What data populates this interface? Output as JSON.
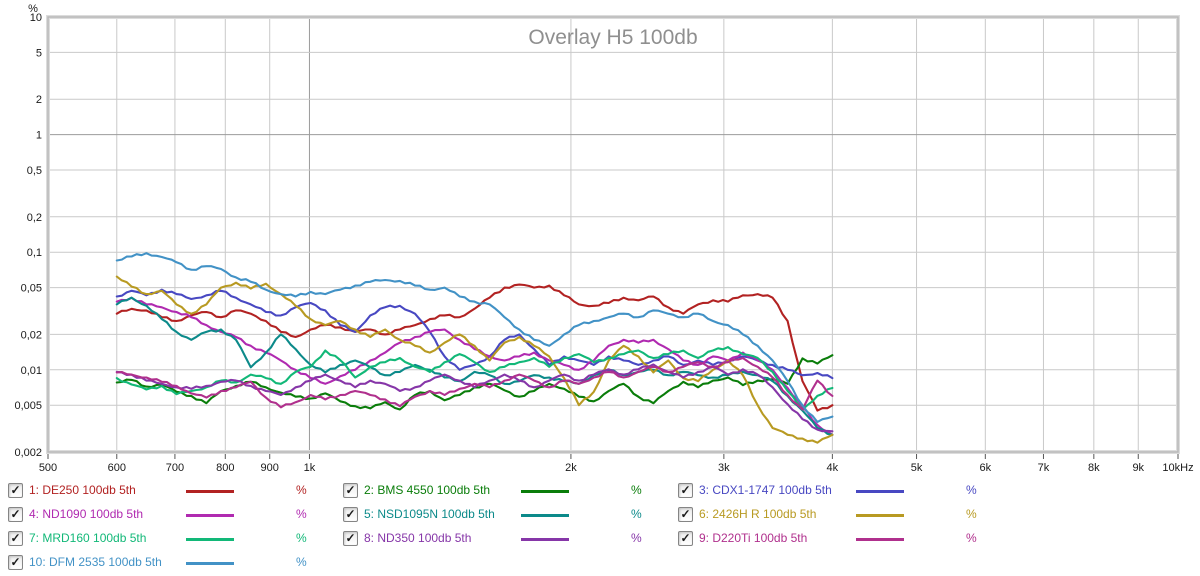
{
  "title": "Overlay H5 100db",
  "axis": {
    "y_unit": "%",
    "x_tick_labels": [
      "500",
      "600",
      "700",
      "800",
      "900",
      "1k",
      "2k",
      "3k",
      "4k",
      "5k",
      "6k",
      "7k",
      "8k",
      "9k",
      "10kHz"
    ],
    "y_tick_labels": [
      "10",
      "5",
      "2",
      "1",
      "0,5",
      "0,2",
      "0,1",
      "0,05",
      "0,02",
      "0,01",
      "0,005",
      "0,002"
    ]
  },
  "colors": {
    "grid": "#c9c9c9",
    "grid_major": "#9b9b9b",
    "border": "#b9b9b9",
    "border_outer": "#dcdcdc",
    "title": "#8f8f8f",
    "tick_text": "#1a1a1a",
    "tick_mark": "#555555",
    "background": "#ffffff"
  },
  "chart_data": {
    "type": "line",
    "title": "Overlay H5 100db",
    "ylabel": "%",
    "x_unit": "Hz",
    "x_scale": "log",
    "y_scale": "log",
    "x_range": [
      500,
      10000
    ],
    "y_range": [
      0.002,
      10
    ],
    "grid": true,
    "legend_position": "bottom",
    "x_ticks": [
      {
        "f": 500,
        "label": "500"
      },
      {
        "f": 600,
        "label": "600"
      },
      {
        "f": 700,
        "label": "700"
      },
      {
        "f": 800,
        "label": "800"
      },
      {
        "f": 900,
        "label": "900"
      },
      {
        "f": 1000,
        "label": "1k"
      },
      {
        "f": 2000,
        "label": "2k"
      },
      {
        "f": 3000,
        "label": "3k"
      },
      {
        "f": 4000,
        "label": "4k"
      },
      {
        "f": 5000,
        "label": "5k"
      },
      {
        "f": 6000,
        "label": "6k"
      },
      {
        "f": 7000,
        "label": "7k"
      },
      {
        "f": 8000,
        "label": "8k"
      },
      {
        "f": 9000,
        "label": "9k"
      },
      {
        "f": 10000,
        "label": "10kHz"
      }
    ],
    "y_ticks": [
      {
        "v": 10,
        "label": "10"
      },
      {
        "v": 5,
        "label": "5"
      },
      {
        "v": 2,
        "label": "2"
      },
      {
        "v": 1,
        "label": "1"
      },
      {
        "v": 0.5,
        "label": "0,5"
      },
      {
        "v": 0.2,
        "label": "0,2"
      },
      {
        "v": 0.1,
        "label": "0,1"
      },
      {
        "v": 0.05,
        "label": "0,05"
      },
      {
        "v": 0.02,
        "label": "0,02"
      },
      {
        "v": 0.01,
        "label": "0,01"
      },
      {
        "v": 0.005,
        "label": "0,005"
      },
      {
        "v": 0.002,
        "label": "0,002"
      }
    ],
    "frequencies_hz": [
      600,
      624,
      649,
      676,
      703,
      731,
      761,
      791,
      823,
      856,
      891,
      927,
      964,
      1003,
      1043,
      1085,
      1129,
      1175,
      1222,
      1271,
      1323,
      1376,
      1431,
      1489,
      1549,
      1612,
      1677,
      1744,
      1814,
      1888,
      1964,
      2043,
      2125,
      2211,
      2300,
      2392,
      2489,
      2589,
      2694,
      2802,
      2915,
      3033,
      3155,
      3282,
      3414,
      3552,
      3695,
      3844,
      4000
    ],
    "series": [
      {
        "name": "1: DE250 100db 5th",
        "color": "#b22222",
        "values": [
          0.03,
          0.033,
          0.032,
          0.028,
          0.026,
          0.029,
          0.031,
          0.028,
          0.032,
          0.03,
          0.026,
          0.021,
          0.019,
          0.022,
          0.024,
          0.023,
          0.021,
          0.022,
          0.02,
          0.022,
          0.024,
          0.027,
          0.029,
          0.028,
          0.033,
          0.041,
          0.05,
          0.053,
          0.05,
          0.052,
          0.043,
          0.036,
          0.035,
          0.037,
          0.041,
          0.039,
          0.042,
          0.034,
          0.03,
          0.036,
          0.039,
          0.038,
          0.043,
          0.044,
          0.041,
          0.026,
          0.008,
          0.0045,
          0.005
        ]
      },
      {
        "name": "2: BMS 4550 100db 5th",
        "color": "#0a7d0a",
        "values": [
          0.0078,
          0.0082,
          0.0072,
          0.0075,
          0.0065,
          0.006,
          0.0052,
          0.0066,
          0.0073,
          0.0079,
          0.0071,
          0.0064,
          0.0059,
          0.0057,
          0.0063,
          0.0054,
          0.0049,
          0.0047,
          0.0053,
          0.0046,
          0.0061,
          0.0066,
          0.0055,
          0.0061,
          0.0071,
          0.0076,
          0.0067,
          0.0059,
          0.0066,
          0.0076,
          0.0069,
          0.0059,
          0.0054,
          0.0066,
          0.0076,
          0.0059,
          0.0052,
          0.0066,
          0.0079,
          0.0071,
          0.0081,
          0.0086,
          0.0074,
          0.0081,
          0.0083,
          0.0076,
          0.0125,
          0.0113,
          0.0133
        ]
      },
      {
        "name": "3: CDX1-1747 100db 5th",
        "color": "#4848c2",
        "values": [
          0.042,
          0.047,
          0.043,
          0.048,
          0.044,
          0.04,
          0.043,
          0.047,
          0.041,
          0.036,
          0.031,
          0.029,
          0.034,
          0.037,
          0.032,
          0.024,
          0.021,
          0.029,
          0.034,
          0.035,
          0.03,
          0.021,
          0.013,
          0.01,
          0.011,
          0.013,
          0.018,
          0.02,
          0.015,
          0.011,
          0.013,
          0.012,
          0.011,
          0.013,
          0.012,
          0.011,
          0.012,
          0.013,
          0.011,
          0.012,
          0.011,
          0.012,
          0.013,
          0.012,
          0.011,
          0.01,
          0.009,
          0.0094,
          0.0085
        ]
      },
      {
        "name": "4: ND1090 100db 5th",
        "color": "#b02ab0",
        "values": [
          0.038,
          0.041,
          0.036,
          0.034,
          0.031,
          0.028,
          0.024,
          0.021,
          0.019,
          0.016,
          0.014,
          0.012,
          0.01,
          0.0085,
          0.0076,
          0.0088,
          0.01,
          0.012,
          0.014,
          0.017,
          0.019,
          0.021,
          0.022,
          0.018,
          0.015,
          0.013,
          0.012,
          0.013,
          0.014,
          0.012,
          0.011,
          0.01,
          0.012,
          0.016,
          0.018,
          0.017,
          0.018,
          0.015,
          0.012,
          0.011,
          0.013,
          0.012,
          0.014,
          0.012,
          0.01,
          0.007,
          0.0048,
          0.0034,
          0.0028
        ]
      },
      {
        "name": "5: NSD1095N 100db 5th",
        "color": "#0c8a8a",
        "values": [
          0.036,
          0.041,
          0.035,
          0.027,
          0.021,
          0.018,
          0.021,
          0.022,
          0.018,
          0.0105,
          0.014,
          0.02,
          0.015,
          0.011,
          0.0095,
          0.011,
          0.012,
          0.0105,
          0.009,
          0.0096,
          0.011,
          0.01,
          0.0086,
          0.008,
          0.0096,
          0.009,
          0.0076,
          0.008,
          0.009,
          0.0086,
          0.008,
          0.0076,
          0.009,
          0.01,
          0.009,
          0.0096,
          0.01,
          0.009,
          0.0096,
          0.009,
          0.0086,
          0.009,
          0.0096,
          0.009,
          0.008,
          0.006,
          0.0045,
          0.0032,
          0.0028
        ]
      },
      {
        "name": "6: 2426H R 100db 5th",
        "color": "#b89a22",
        "values": [
          0.062,
          0.051,
          0.044,
          0.047,
          0.036,
          0.03,
          0.036,
          0.05,
          0.055,
          0.049,
          0.054,
          0.044,
          0.035,
          0.027,
          0.024,
          0.026,
          0.022,
          0.019,
          0.022,
          0.018,
          0.016,
          0.014,
          0.017,
          0.02,
          0.016,
          0.012,
          0.017,
          0.019,
          0.016,
          0.013,
          0.0085,
          0.005,
          0.0065,
          0.012,
          0.016,
          0.013,
          0.0095,
          0.012,
          0.0085,
          0.008,
          0.01,
          0.012,
          0.009,
          0.005,
          0.0032,
          0.0028,
          0.0026,
          0.0024,
          0.0028
        ]
      },
      {
        "name": "7: MRD160 100db 5th",
        "color": "#12b878",
        "values": [
          0.0085,
          0.0075,
          0.0068,
          0.0073,
          0.0062,
          0.0066,
          0.0071,
          0.0081,
          0.0078,
          0.0091,
          0.0085,
          0.0076,
          0.0096,
          0.0106,
          0.0146,
          0.0121,
          0.0086,
          0.0106,
          0.0116,
          0.0126,
          0.0106,
          0.0096,
          0.0116,
          0.0136,
          0.0116,
          0.0096,
          0.0106,
          0.0116,
          0.0126,
          0.0106,
          0.0126,
          0.0136,
          0.0116,
          0.0126,
          0.0136,
          0.0146,
          0.0126,
          0.0136,
          0.0146,
          0.0126,
          0.0146,
          0.0156,
          0.0136,
          0.0126,
          0.0096,
          0.0066,
          0.0046,
          0.006,
          0.007
        ]
      },
      {
        "name": "8: ND350 100db 5th",
        "color": "#8636a8",
        "values": [
          0.0096,
          0.0091,
          0.0081,
          0.0076,
          0.0071,
          0.0069,
          0.0073,
          0.0079,
          0.0081,
          0.0073,
          0.0066,
          0.0061,
          0.0071,
          0.0081,
          0.0091,
          0.0081,
          0.0071,
          0.0081,
          0.0076,
          0.0066,
          0.0071,
          0.0081,
          0.0091,
          0.0081,
          0.0071,
          0.0081,
          0.0091,
          0.0081,
          0.0071,
          0.0081,
          0.0091,
          0.0081,
          0.0091,
          0.0101,
          0.0091,
          0.0101,
          0.0111,
          0.0096,
          0.0086,
          0.0096,
          0.0106,
          0.0091,
          0.0101,
          0.0091,
          0.0071,
          0.0051,
          0.0038,
          0.0031,
          0.003
        ]
      },
      {
        "name": "9: D220Ti 100db 5th",
        "color": "#b0308d",
        "values": [
          0.0095,
          0.0091,
          0.0086,
          0.0079,
          0.0073,
          0.0063,
          0.0058,
          0.0066,
          0.0071,
          0.0079,
          0.0058,
          0.0048,
          0.0053,
          0.0061,
          0.0056,
          0.0061,
          0.0066,
          0.0061,
          0.0056,
          0.0049,
          0.0059,
          0.0066,
          0.0061,
          0.0069,
          0.0076,
          0.0071,
          0.0081,
          0.0091,
          0.0081,
          0.0071,
          0.0081,
          0.0076,
          0.0086,
          0.0096,
          0.0086,
          0.0096,
          0.0106,
          0.0096,
          0.0106,
          0.0116,
          0.0106,
          0.0116,
          0.0126,
          0.0106,
          0.0086,
          0.0061,
          0.0046,
          0.0081,
          0.006
        ]
      },
      {
        "name": "10: DFM 2535 100db 5th",
        "color": "#4292c6",
        "values": [
          0.085,
          0.092,
          0.098,
          0.091,
          0.082,
          0.071,
          0.076,
          0.072,
          0.061,
          0.056,
          0.048,
          0.044,
          0.042,
          0.046,
          0.044,
          0.048,
          0.052,
          0.056,
          0.058,
          0.057,
          0.052,
          0.048,
          0.05,
          0.042,
          0.038,
          0.036,
          0.028,
          0.022,
          0.018,
          0.016,
          0.02,
          0.024,
          0.026,
          0.028,
          0.03,
          0.028,
          0.032,
          0.03,
          0.028,
          0.03,
          0.026,
          0.024,
          0.02,
          0.016,
          0.012,
          0.008,
          0.005,
          0.0036,
          0.004
        ]
      }
    ]
  },
  "legend": {
    "unit_symbol": "%",
    "items": [
      {
        "label": "1: DE250 100db 5th",
        "color": "#b22222",
        "checked": true
      },
      {
        "label": "2: BMS 4550 100db 5th",
        "color": "#0a7d0a",
        "checked": true
      },
      {
        "label": "3: CDX1-1747 100db 5th",
        "color": "#4848c2",
        "checked": true
      },
      {
        "label": "4: ND1090 100db 5th",
        "color": "#b02ab0",
        "checked": true
      },
      {
        "label": "5: NSD1095N 100db 5th",
        "color": "#0c8a8a",
        "checked": true
      },
      {
        "label": "6: 2426H R 100db 5th",
        "color": "#b89a22",
        "checked": true
      },
      {
        "label": "7: MRD160 100db 5th",
        "color": "#12b878",
        "checked": true
      },
      {
        "label": "8: ND350 100db 5th",
        "color": "#8636a8",
        "checked": true
      },
      {
        "label": "9: D220Ti 100db 5th",
        "color": "#b0308d",
        "checked": true
      },
      {
        "label": "10: DFM 2535 100db 5th",
        "color": "#4292c6",
        "checked": true
      }
    ],
    "checkmark": "✓"
  }
}
